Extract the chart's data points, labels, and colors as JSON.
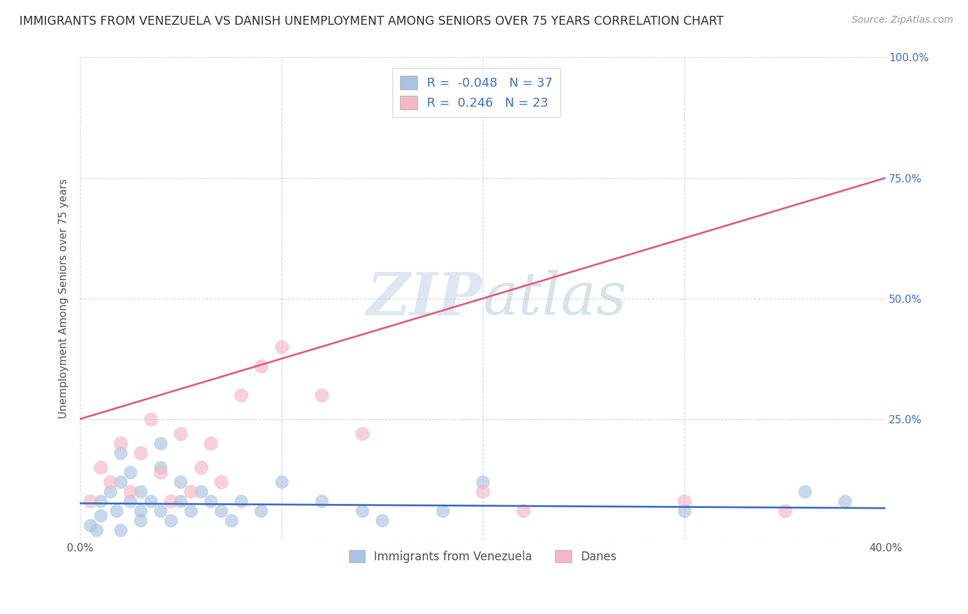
{
  "title": "IMMIGRANTS FROM VENEZUELA VS DANISH UNEMPLOYMENT AMONG SENIORS OVER 75 YEARS CORRELATION CHART",
  "source": "Source: ZipAtlas.com",
  "ylabel": "Unemployment Among Seniors over 75 years",
  "xlim": [
    0.0,
    0.4
  ],
  "ylim": [
    0.0,
    1.0
  ],
  "xticks": [
    0.0,
    0.1,
    0.2,
    0.3,
    0.4
  ],
  "xticklabels": [
    "0.0%",
    "",
    "",
    "",
    "40.0%"
  ],
  "yticks": [
    0.0,
    0.25,
    0.5,
    0.75,
    1.0
  ],
  "yticklabels_right": [
    "",
    "25.0%",
    "50.0%",
    "75.0%",
    "100.0%"
  ],
  "blue_R": -0.048,
  "blue_N": 37,
  "pink_R": 0.246,
  "pink_N": 23,
  "blue_color": "#A8C4E0",
  "pink_color": "#F2B8C6",
  "blue_line_color": "#4472C4",
  "pink_line_color": "#E06080",
  "watermark_color": "#C8D8E8",
  "pink_line_x": [
    0.0,
    0.4
  ],
  "pink_line_y": [
    0.25,
    0.75
  ],
  "blue_line_x": [
    0.0,
    0.4
  ],
  "blue_line_y": [
    0.075,
    0.065
  ],
  "blue_scatter_x": [
    0.005,
    0.008,
    0.01,
    0.01,
    0.015,
    0.018,
    0.02,
    0.02,
    0.025,
    0.025,
    0.03,
    0.03,
    0.03,
    0.035,
    0.04,
    0.04,
    0.04,
    0.045,
    0.05,
    0.05,
    0.055,
    0.06,
    0.065,
    0.07,
    0.075,
    0.08,
    0.09,
    0.1,
    0.12,
    0.14,
    0.15,
    0.18,
    0.2,
    0.3,
    0.36,
    0.38,
    0.02
  ],
  "blue_scatter_y": [
    0.03,
    0.02,
    0.05,
    0.08,
    0.1,
    0.06,
    0.12,
    0.18,
    0.08,
    0.14,
    0.06,
    0.1,
    0.04,
    0.08,
    0.15,
    0.2,
    0.06,
    0.04,
    0.12,
    0.08,
    0.06,
    0.1,
    0.08,
    0.06,
    0.04,
    0.08,
    0.06,
    0.12,
    0.08,
    0.06,
    0.04,
    0.06,
    0.12,
    0.06,
    0.1,
    0.08,
    0.02
  ],
  "pink_scatter_x": [
    0.005,
    0.01,
    0.015,
    0.02,
    0.025,
    0.03,
    0.035,
    0.04,
    0.045,
    0.05,
    0.055,
    0.06,
    0.065,
    0.07,
    0.08,
    0.09,
    0.1,
    0.12,
    0.14,
    0.2,
    0.22,
    0.3,
    0.35
  ],
  "pink_scatter_y": [
    0.08,
    0.15,
    0.12,
    0.2,
    0.1,
    0.18,
    0.25,
    0.14,
    0.08,
    0.22,
    0.1,
    0.15,
    0.2,
    0.12,
    0.3,
    0.36,
    0.4,
    0.3,
    0.22,
    0.1,
    0.06,
    0.08,
    0.06
  ]
}
